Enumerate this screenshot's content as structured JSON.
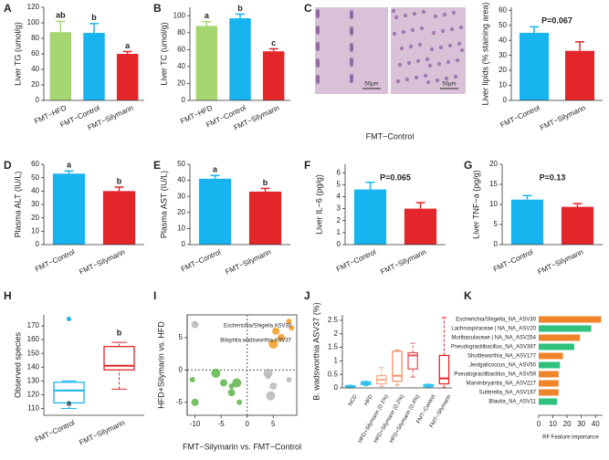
{
  "chart_data": [
    {
      "type": "bar",
      "label": "A",
      "ylabel": "Liver TG (umol/g)",
      "categories": [
        "FMT−HFD",
        "FMT−Control",
        "FMT−Silymarin"
      ],
      "values": [
        88,
        87,
        60
      ],
      "errors": [
        14,
        12,
        3
      ],
      "letters": [
        "ab",
        "b",
        "a"
      ],
      "colors": [
        "#a6d672",
        "#17b4f0",
        "#e3262a"
      ],
      "ylim": [
        0,
        120
      ],
      "yticks": [
        0,
        20,
        40,
        60,
        80,
        100,
        120
      ]
    },
    {
      "type": "bar",
      "label": "B",
      "ylabel": "Liver TC (umol/g)",
      "categories": [
        "FMT−HFD",
        "FMT−Control",
        "FMT−Silymarin"
      ],
      "values": [
        88,
        97,
        58
      ],
      "errors": [
        5,
        5,
        3
      ],
      "letters": [
        "a",
        "b",
        "c"
      ],
      "colors": [
        "#a6d672",
        "#17b4f0",
        "#e3262a"
      ],
      "ylim": [
        0,
        110
      ],
      "yticks": [
        0,
        20,
        40,
        60,
        80,
        100
      ]
    },
    {
      "type": "bar",
      "label": "C",
      "ylabel": "Liver lipids (% staining area)",
      "categories": [
        "FMT−Control",
        "FMT−Silymarin"
      ],
      "values": [
        45,
        33
      ],
      "errors": [
        4,
        6
      ],
      "annotation": "P=0.067",
      "colors": [
        "#17b4f0",
        "#e3262a"
      ],
      "ylim": [
        0,
        62
      ],
      "yticks": [
        0,
        10,
        20,
        30,
        40,
        50,
        60
      ],
      "image_caption": "FMT−Control",
      "scale_labels": [
        "50μm",
        "50μm"
      ]
    },
    {
      "type": "bar",
      "label": "D",
      "ylabel": "Plasma ALT (IU/L)",
      "categories": [
        "FMT−Control",
        "FMT−Silymarin"
      ],
      "values": [
        53,
        40
      ],
      "errors": [
        2,
        3
      ],
      "letters": [
        "a",
        "b"
      ],
      "colors": [
        "#17b4f0",
        "#e3262a"
      ],
      "ylim": [
        0,
        60
      ],
      "yticks": [
        0,
        10,
        20,
        30,
        40,
        50,
        60
      ]
    },
    {
      "type": "bar",
      "label": "E",
      "ylabel": "Plasma AST (IU/L)",
      "categories": [
        "FMT−Control",
        "FMT−Silymarin"
      ],
      "values": [
        41,
        33
      ],
      "errors": [
        2,
        2
      ],
      "letters": [
        "a",
        "b"
      ],
      "colors": [
        "#17b4f0",
        "#e3262a"
      ],
      "ylim": [
        0,
        50
      ],
      "yticks": [
        0,
        10,
        20,
        30,
        40,
        50
      ]
    },
    {
      "type": "bar",
      "label": "F",
      "ylabel": "Liver IL−6 (pg/g)",
      "categories": [
        "FMT−Control",
        "FMT−Silymarin"
      ],
      "values": [
        4.6,
        3.0
      ],
      "errors": [
        0.6,
        0.5
      ],
      "annotation": "P=0.065",
      "colors": [
        "#17b4f0",
        "#e3262a"
      ],
      "ylim": [
        0,
        6.7
      ],
      "yticks": [
        0,
        1,
        2,
        3,
        4,
        5,
        6
      ]
    },
    {
      "type": "bar",
      "label": "G",
      "ylabel": "Liver TNF−a (pg/g)",
      "categories": [
        "FMT−Control",
        "FMT−Silymarin"
      ],
      "values": [
        11.2,
        9.4
      ],
      "errors": [
        1,
        0.8
      ],
      "annotation": "P=0.13",
      "colors": [
        "#17b4f0",
        "#e3262a"
      ],
      "ylim": [
        0,
        20
      ],
      "yticks": [
        0,
        5,
        10,
        15,
        20
      ]
    },
    {
      "type": "box",
      "label": "H",
      "ylabel": "Observed species",
      "categories": [
        "FMT−Control",
        "FMT−Silymarin"
      ],
      "min": [
        110,
        124
      ],
      "q1": [
        114,
        138
      ],
      "median": [
        123,
        141
      ],
      "q3": [
        129,
        155
      ],
      "max": [
        130,
        158
      ],
      "outliers": [
        [
          175
        ],
        []
      ],
      "letters": [
        "a",
        "b"
      ],
      "colors": [
        "#17b4f0",
        "#e3262a"
      ],
      "ylim": [
        105,
        178
      ],
      "yticks": [
        110,
        120,
        130,
        140,
        150,
        160,
        170
      ]
    },
    {
      "type": "scatter",
      "label": "I",
      "xlabel": "FMT−Silymarin vs. FMT−Control",
      "ylabel": "HFD+Silymarin vs. HFD",
      "series": [
        {
          "color": "#f39a1e",
          "x": [
            8,
            5.5,
            5,
            8.5,
            6.5
          ],
          "values": [
            7.5,
            6,
            4,
            6.5,
            5
          ]
        },
        {
          "color": "#5cb547",
          "x": [
            -10.5,
            -10,
            -6,
            -3,
            -3,
            -2,
            -1.5,
            -4.5
          ],
          "values": [
            -1.5,
            -5,
            -0.5,
            -2.5,
            -3.5,
            -2,
            -5,
            -2
          ]
        },
        {
          "color": "#b8b8b8",
          "x": [
            4,
            5,
            4.5,
            8,
            -10,
            4
          ],
          "values": [
            -1,
            -2.5,
            -4,
            -1.5,
            7,
            -0.5
          ]
        }
      ],
      "annotations": [
        "Escherichia/Shigella ASV30",
        "Bilophila wadsworthia ASV37"
      ],
      "xlim": [
        -11.5,
        9.5
      ],
      "ylim": [
        -7,
        8.5
      ],
      "xticks": [
        -10,
        -5,
        0,
        5
      ],
      "yticks": [
        -5,
        0,
        5
      ]
    },
    {
      "type": "box",
      "label": "J",
      "ylabel": "B. wadsworthia ASV37 (%)",
      "categories": [
        "NCD",
        "HFD",
        "HFD+Silymarin (0.1%)",
        "HFD+Silymarin (0.2%)",
        "HFD+Silymarin (0.4%)",
        "FMT−Control",
        "FMT−Silymarin"
      ],
      "min": [
        0,
        0.08,
        0.05,
        0.1,
        0.4,
        0.02,
        0
      ],
      "q1": [
        0.02,
        0.12,
        0.15,
        0.25,
        0.7,
        0.05,
        0.15
      ],
      "median": [
        0.05,
        0.17,
        0.3,
        0.45,
        1.2,
        0.08,
        0.35
      ],
      "q3": [
        0.08,
        0.22,
        0.45,
        1.35,
        1.3,
        0.12,
        1.2
      ],
      "max": [
        0.1,
        0.25,
        0.75,
        1.4,
        1.65,
        0.14,
        2.6
      ],
      "colors": [
        "#31c4f0",
        "#31c4f0",
        "#f5b08a",
        "#f29066",
        "#e55a5a",
        "#31c4f0",
        "#e3262a"
      ],
      "ylim": [
        0,
        2.7
      ],
      "yticks": [
        0,
        0.5,
        1,
        1.5,
        2,
        2.5
      ]
    },
    {
      "type": "hbar",
      "label": "K",
      "xlabel": "RF Feature importance",
      "categories": [
        "Escherichia/Shigella_NA_ASV30",
        "Lachnospiraceae | NA_NA_ASV20",
        "Muribaculaceae | NA_NA_ASV254",
        "Pseudogracilibacillus_NA_ASV387",
        "Shuttleworthia_NA_ASV177",
        "Jeotgalicoccus_NA_ASV50",
        "Pseudogracilibacillus_NA_ASV59",
        "Marvinbryantia_NA_ASV227",
        "Sutterella_NA_ASV167",
        "Blautia_NA_ASV11"
      ],
      "values": [
        44,
        37,
        29,
        25,
        17,
        15,
        14,
        14,
        14,
        13
      ],
      "colors": [
        "#f0842a",
        "#2ec27e",
        "#f0842a",
        "#2ec27e",
        "#f0842a",
        "#2ec27e",
        "#f0842a",
        "#f0842a",
        "#f0842a",
        "#2ec27e"
      ],
      "xlim": [
        0,
        45
      ],
      "xticks": [
        0,
        10,
        20,
        30,
        40
      ]
    }
  ]
}
